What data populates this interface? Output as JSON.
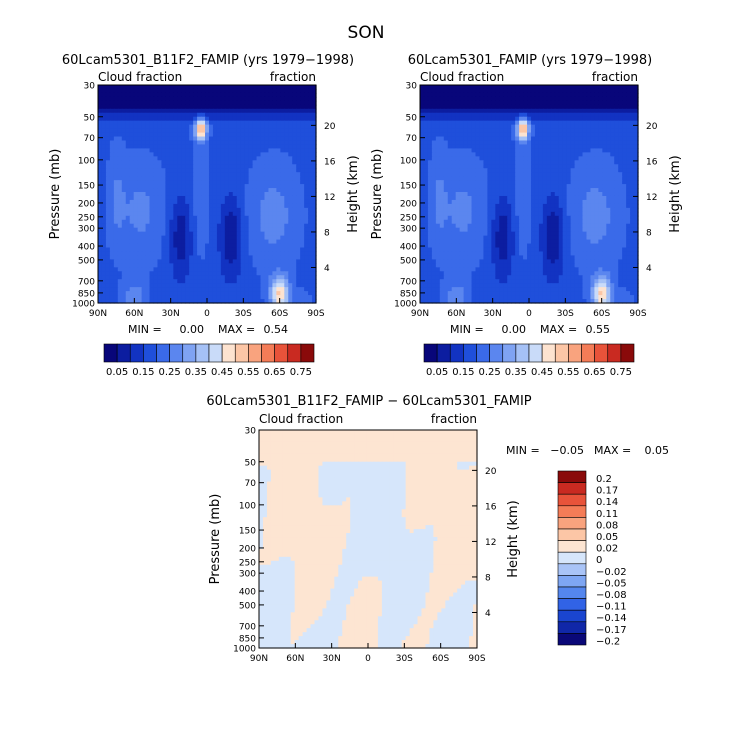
{
  "page_title": "SON",
  "colors": {
    "main_scale": [
      "#08067a",
      "#0c1da0",
      "#1233c2",
      "#1f4fdb",
      "#3a6ae9",
      "#5b86ef",
      "#7fa3f3",
      "#a5c1f6",
      "#c9dbf9",
      "#fde3d0",
      "#fcc6a6",
      "#f9a37e",
      "#f47c57",
      "#e8533a",
      "#c92a21",
      "#8a0a0a"
    ],
    "diff_scale": [
      "#0a0878",
      "#1027a8",
      "#1a45d0",
      "#3163e6",
      "#5486ee",
      "#7ea6f3",
      "#a9c4f7",
      "#d6e6fb",
      "#fde5d2",
      "#fcc6a6",
      "#f9a37e",
      "#f47c57",
      "#e8533a",
      "#c92a21",
      "#8a0a0a"
    ]
  },
  "chart_data": [
    {
      "type": "heatmap",
      "title": "60Lcam5301_B11F2_FAMIP (yrs 1979−1998)",
      "left_label": "Cloud fraction",
      "right_label": "fraction",
      "ylabel": "Pressure (mb)",
      "y2label": "Height (km)",
      "x_ticks": [
        "90N",
        "60N",
        "30N",
        "0",
        "30S",
        "60S",
        "90S"
      ],
      "y_ticks": [
        "30",
        "50",
        "70",
        "100",
        "150",
        "200",
        "250",
        "300",
        "400",
        "500",
        "700",
        "850",
        "1000"
      ],
      "y_ticks_mb": [
        30,
        50,
        70,
        100,
        150,
        200,
        250,
        300,
        400,
        500,
        700,
        850,
        1000
      ],
      "y2_ticks": [
        "20",
        "16",
        "12",
        "8",
        "4"
      ],
      "y2_ticks_km": [
        20,
        16,
        12,
        8,
        4
      ],
      "stats": {
        "min_label": "MIN =",
        "min": "0.00",
        "max_label": "MAX =",
        "max": "0.54"
      },
      "ylim_mb": [
        1000,
        30
      ],
      "xlim_lat": [
        90,
        -90
      ],
      "value_range": [
        0,
        0.54
      ]
    },
    {
      "type": "heatmap",
      "title": "60Lcam5301_FAMIP (yrs 1979−1998)",
      "left_label": "Cloud fraction",
      "right_label": "fraction",
      "ylabel": "Pressure (mb)",
      "y2label": "Height (km)",
      "x_ticks": [
        "90N",
        "60N",
        "30N",
        "0",
        "30S",
        "60S",
        "90S"
      ],
      "y_ticks": [
        "30",
        "50",
        "70",
        "100",
        "150",
        "200",
        "250",
        "300",
        "400",
        "500",
        "700",
        "850",
        "1000"
      ],
      "y_ticks_mb": [
        30,
        50,
        70,
        100,
        150,
        200,
        250,
        300,
        400,
        500,
        700,
        850,
        1000
      ],
      "y2_ticks": [
        "20",
        "16",
        "12",
        "8",
        "4"
      ],
      "y2_ticks_km": [
        20,
        16,
        12,
        8,
        4
      ],
      "stats": {
        "min_label": "MIN =",
        "min": "0.00",
        "max_label": "MAX =",
        "max": "0.55"
      },
      "ylim_mb": [
        1000,
        30
      ],
      "xlim_lat": [
        90,
        -90
      ],
      "value_range": [
        0,
        0.55
      ]
    },
    {
      "type": "heatmap",
      "title": "60Lcam5301_B11F2_FAMIP − 60Lcam5301_FAMIP",
      "left_label": "Cloud fraction",
      "right_label": "fraction",
      "ylabel": "Pressure (mb)",
      "y2label": "Height (km)",
      "x_ticks": [
        "90N",
        "60N",
        "30N",
        "0",
        "30S",
        "60S",
        "90S"
      ],
      "y_ticks": [
        "30",
        "50",
        "70",
        "100",
        "150",
        "200",
        "250",
        "300",
        "400",
        "500",
        "700",
        "850",
        "1000"
      ],
      "y_ticks_mb": [
        30,
        50,
        70,
        100,
        150,
        200,
        250,
        300,
        400,
        500,
        700,
        850,
        1000
      ],
      "y2_ticks": [
        "20",
        "16",
        "12",
        "8",
        "4"
      ],
      "y2_ticks_km": [
        20,
        16,
        12,
        8,
        4
      ],
      "stats": {
        "min_label": "MIN =",
        "min": "−0.05",
        "max_label": "MAX =",
        "max": "0.05"
      },
      "ylim_mb": [
        1000,
        30
      ],
      "xlim_lat": [
        90,
        -90
      ],
      "value_range": [
        -0.05,
        0.05
      ]
    }
  ],
  "colorbar_main": {
    "orientation": "horizontal",
    "levels": [
      0.05,
      0.1,
      0.15,
      0.2,
      0.25,
      0.3,
      0.35,
      0.4,
      0.45,
      0.5,
      0.55,
      0.6,
      0.65,
      0.7,
      0.75
    ],
    "labels": [
      "0.05",
      "0.15",
      "0.25",
      "0.35",
      "0.45",
      "0.55",
      "0.65",
      "0.75"
    ]
  },
  "colorbar_diff": {
    "orientation": "vertical",
    "labels": [
      "0.2",
      "0.17",
      "0.14",
      "0.11",
      "0.08",
      "0.05",
      "0.02",
      "0",
      "−0.02",
      "−0.05",
      "−0.08",
      "−0.11",
      "−0.14",
      "−0.17",
      "−0.2"
    ]
  }
}
